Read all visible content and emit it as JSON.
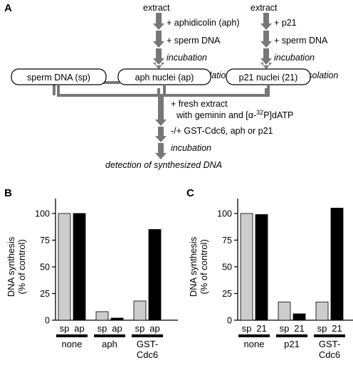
{
  "panels": {
    "a": {
      "letter": "A"
    },
    "b": {
      "letter": "B"
    },
    "c": {
      "letter": "C"
    }
  },
  "scheme": {
    "left_col": {
      "extract": "extract",
      "steps": [
        "+ aphidicolin (aph)",
        "+ sperm DNA",
        "incubation",
        "nuclear isolation"
      ]
    },
    "right_col": {
      "extract": "extract",
      "steps": [
        "+ p21",
        "+ sperm DNA",
        "incubation",
        "nuclear isolation"
      ]
    },
    "boxes": [
      "sperm DNA (sp)",
      "aph nuclei (ap)",
      "p21 nuclei (21)"
    ],
    "merge": {
      "step1_line1": "+ fresh extract",
      "step1_line2_prefix": "with geminin and [",
      "step1_alpha": "α",
      "step1_dash": "-",
      "step1_sup": "32",
      "step1_suffix": "P]dATP",
      "step2": "-/+ GST-Cdc6, aph or p21",
      "step3": "incubation",
      "final": "detection of synthesized DNA"
    }
  },
  "chart_data": [
    {
      "type": "bar",
      "panel": "B",
      "ylabel": [
        "DNA synthesis",
        "(% of control)"
      ],
      "ylim": [
        0,
        120
      ],
      "yticks": [
        0,
        25,
        50,
        75,
        100
      ],
      "groups": [
        {
          "label": [
            "none"
          ],
          "bars": [
            {
              "label": "sp",
              "value": 100,
              "color": "#cccccc"
            },
            {
              "label": "ap",
              "value": 100,
              "color": "#000000"
            }
          ]
        },
        {
          "label": [
            "aph"
          ],
          "bars": [
            {
              "label": "sp",
              "value": 8,
              "color": "#cccccc"
            },
            {
              "label": "ap",
              "value": 2,
              "color": "#000000"
            }
          ]
        },
        {
          "label": [
            "GST-",
            "Cdc6"
          ],
          "bars": [
            {
              "label": "sp",
              "value": 18,
              "color": "#cccccc"
            },
            {
              "label": "ap",
              "value": 85,
              "color": "#000000"
            }
          ]
        }
      ]
    },
    {
      "type": "bar",
      "panel": "C",
      "ylabel": [
        "DNA synthesis",
        "(% of control)"
      ],
      "ylim": [
        0,
        120
      ],
      "yticks": [
        0,
        25,
        50,
        75,
        100
      ],
      "groups": [
        {
          "label": [
            "none"
          ],
          "bars": [
            {
              "label": "sp",
              "value": 100,
              "color": "#cccccc"
            },
            {
              "label": "21",
              "value": 99,
              "color": "#000000"
            }
          ]
        },
        {
          "label": [
            "p21"
          ],
          "bars": [
            {
              "label": "sp",
              "value": 17,
              "color": "#cccccc"
            },
            {
              "label": "21",
              "value": 6,
              "color": "#000000"
            }
          ]
        },
        {
          "label": [
            "GST-",
            "Cdc6"
          ],
          "bars": [
            {
              "label": "sp",
              "value": 17,
              "color": "#cccccc"
            },
            {
              "label": "21",
              "value": 105,
              "color": "#000000"
            }
          ]
        }
      ]
    }
  ],
  "colors": {
    "arrow": "#777777",
    "line": "#000000"
  }
}
